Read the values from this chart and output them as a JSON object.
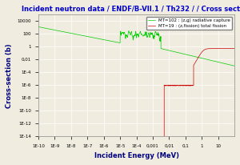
{
  "title": "Incident neutron data / ENDF/B-VII.1 / Th232 / / Cross section",
  "xlabel": "Incident Energy (MeV)",
  "ylabel": "Cross-section (b)",
  "title_color": "#0000cc",
  "xlabel_color": "#000080",
  "ylabel_color": "#000080",
  "background_color": "#f0ede0",
  "legend_entries": [
    "MT=102 : (z,g) radiative capture",
    "MT=19 : (z,fission) total fission"
  ],
  "line_colors": [
    "#00cc00",
    "#cc0000"
  ],
  "xtick_positions": [
    1e-10,
    1e-09,
    1e-08,
    1e-07,
    1e-06,
    1e-05,
    0.0001,
    0.001,
    0.01,
    0.1,
    1,
    10
  ],
  "xtick_labels": [
    "1E-10",
    "1E-9",
    "1E-8",
    "1E-7",
    "1E-6",
    "1E-5",
    "1E-4",
    "0,001",
    "0,01",
    "0,1",
    "1",
    "10"
  ],
  "ytick_positions": [
    1e-14,
    1e-12,
    1e-10,
    1e-08,
    1e-06,
    0.0001,
    0.01,
    1,
    100,
    10000
  ],
  "ytick_labels": [
    "1E-14",
    "1E-12",
    "1E-10",
    "1E-8",
    "1E-6",
    "1E-4",
    "0,01",
    "1",
    "100",
    "10000"
  ]
}
